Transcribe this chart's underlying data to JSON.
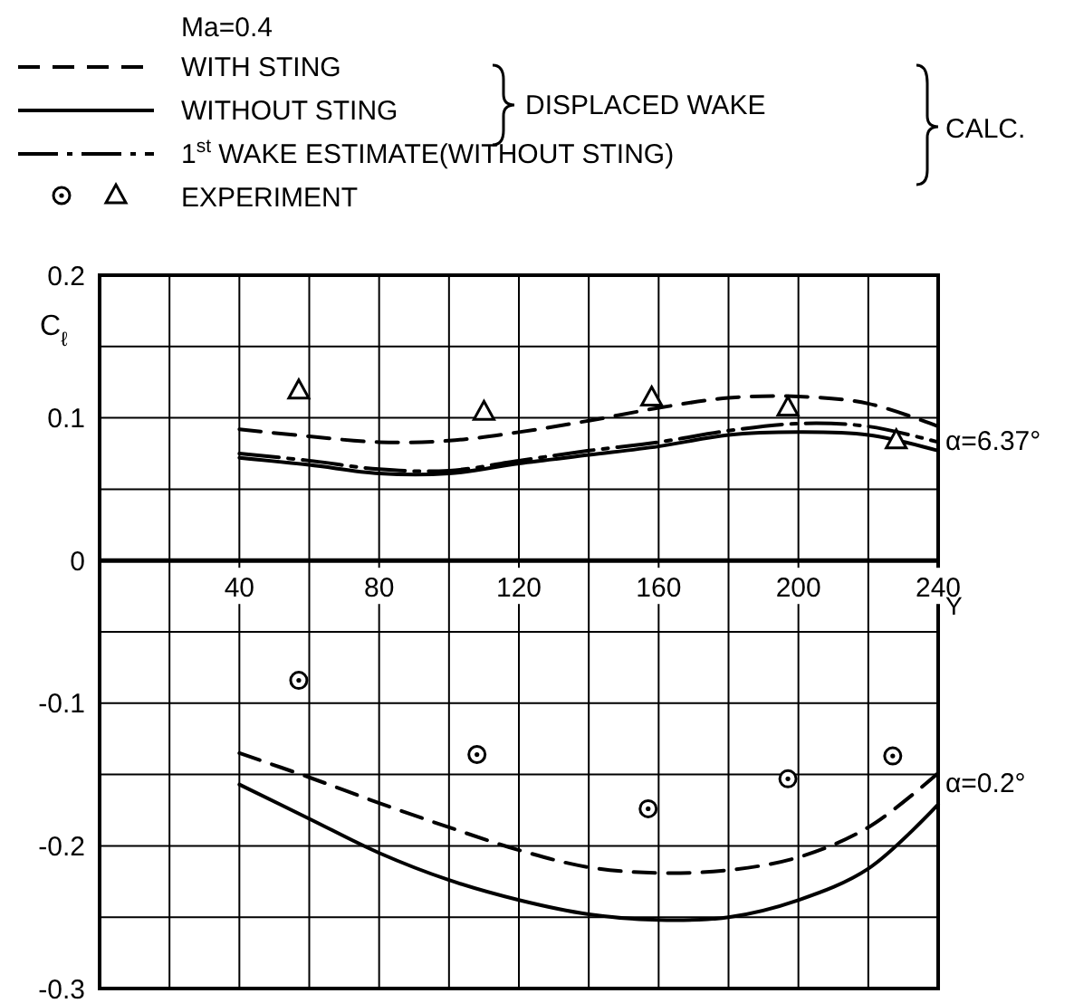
{
  "chart_data": {
    "type": "line",
    "title": "Ma=0.4",
    "xlabel": "Y",
    "ylabel": "C$_{ℓ}$",
    "annotations": [
      "DISPLACED WAKE",
      "CALC.",
      "α=6.37°",
      "α=0.2°"
    ],
    "xlim": [
      0,
      240
    ],
    "ylim": [
      -0.3,
      0.2
    ],
    "xticks": [
      {
        "value": 0,
        "label": null
      },
      {
        "value": 20,
        "label": null
      },
      40,
      {
        "value": 60,
        "label": null
      },
      80,
      {
        "value": 100,
        "label": null
      },
      120,
      {
        "value": 140,
        "label": null
      },
      160,
      {
        "value": 180,
        "label": null
      },
      200,
      {
        "value": 220,
        "label": null
      },
      240
    ],
    "yticks": [
      -0.3,
      {
        "value": -0.25,
        "label": null
      },
      -0.2,
      {
        "value": -0.15,
        "label": null
      },
      -0.1,
      {
        "value": -0.05,
        "label": null
      },
      0,
      {
        "value": 0.05,
        "label": null
      },
      0.1,
      {
        "value": 0.15,
        "label": null
      },
      0.2
    ],
    "grid": true,
    "legend": "top left",
    "series": [
      {
        "name": "WITH STING",
        "line_style": "dashed",
        "color": "#000000",
        "x": [
          40,
          60,
          80,
          100,
          120,
          140,
          160,
          180,
          200,
          220,
          240
        ],
        "values": [
          0.092,
          0.087,
          0.083,
          0.084,
          0.09,
          0.098,
          0.107,
          0.114,
          0.115,
          0.11,
          0.094
        ]
      },
      {
        "name": "WITHOUT STING",
        "line_style": "solid",
        "color": "#000000",
        "x": [
          40,
          60,
          80,
          100,
          120,
          140,
          160,
          180,
          200,
          220,
          240
        ],
        "values": [
          0.072,
          0.067,
          0.061,
          0.061,
          0.068,
          0.074,
          0.08,
          0.088,
          0.09,
          0.088,
          0.077
        ]
      },
      {
        "name": "1$^{st}$ WAKE ESTIMATE(WITHOUT STING)",
        "line_style": "dashdot",
        "color": "#000000",
        "x": [
          40,
          60,
          80,
          100,
          120,
          140,
          160,
          180,
          200,
          220,
          240
        ],
        "values": [
          0.075,
          0.07,
          0.064,
          0.063,
          0.07,
          0.077,
          0.083,
          0.091,
          0.096,
          0.094,
          0.083
        ]
      },
      {
        "type": "scatter",
        "marker": "circle",
        "color": "#000000",
        "x": [
          57,
          108,
          157,
          197,
          227
        ],
        "values": [
          -0.084,
          -0.136,
          -0.174,
          -0.153,
          -0.137
        ]
      },
      {
        "name": "EXPERIMENT",
        "type": "scatter",
        "marker": "triangle",
        "color": "#000000",
        "x": [
          57,
          110,
          158,
          197,
          228
        ],
        "values": [
          0.119,
          0.104,
          0.114,
          0.107,
          0.084
        ]
      },
      {
        "line_style": "dashed",
        "color": "#000000",
        "x": [
          40,
          60,
          80,
          100,
          120,
          140,
          160,
          180,
          200,
          220,
          240
        ],
        "values": [
          -0.135,
          -0.152,
          -0.17,
          -0.187,
          -0.203,
          -0.215,
          -0.219,
          -0.217,
          -0.208,
          -0.187,
          -0.149
        ]
      },
      {
        "line_style": "solid",
        "color": "#000000",
        "x": [
          40,
          60,
          80,
          100,
          120,
          140,
          160,
          180,
          200,
          220,
          240
        ],
        "values": [
          -0.157,
          -0.181,
          -0.205,
          -0.224,
          -0.238,
          -0.248,
          -0.252,
          -0.25,
          -0.238,
          -0.216,
          -0.171
        ]
      }
    ]
  }
}
